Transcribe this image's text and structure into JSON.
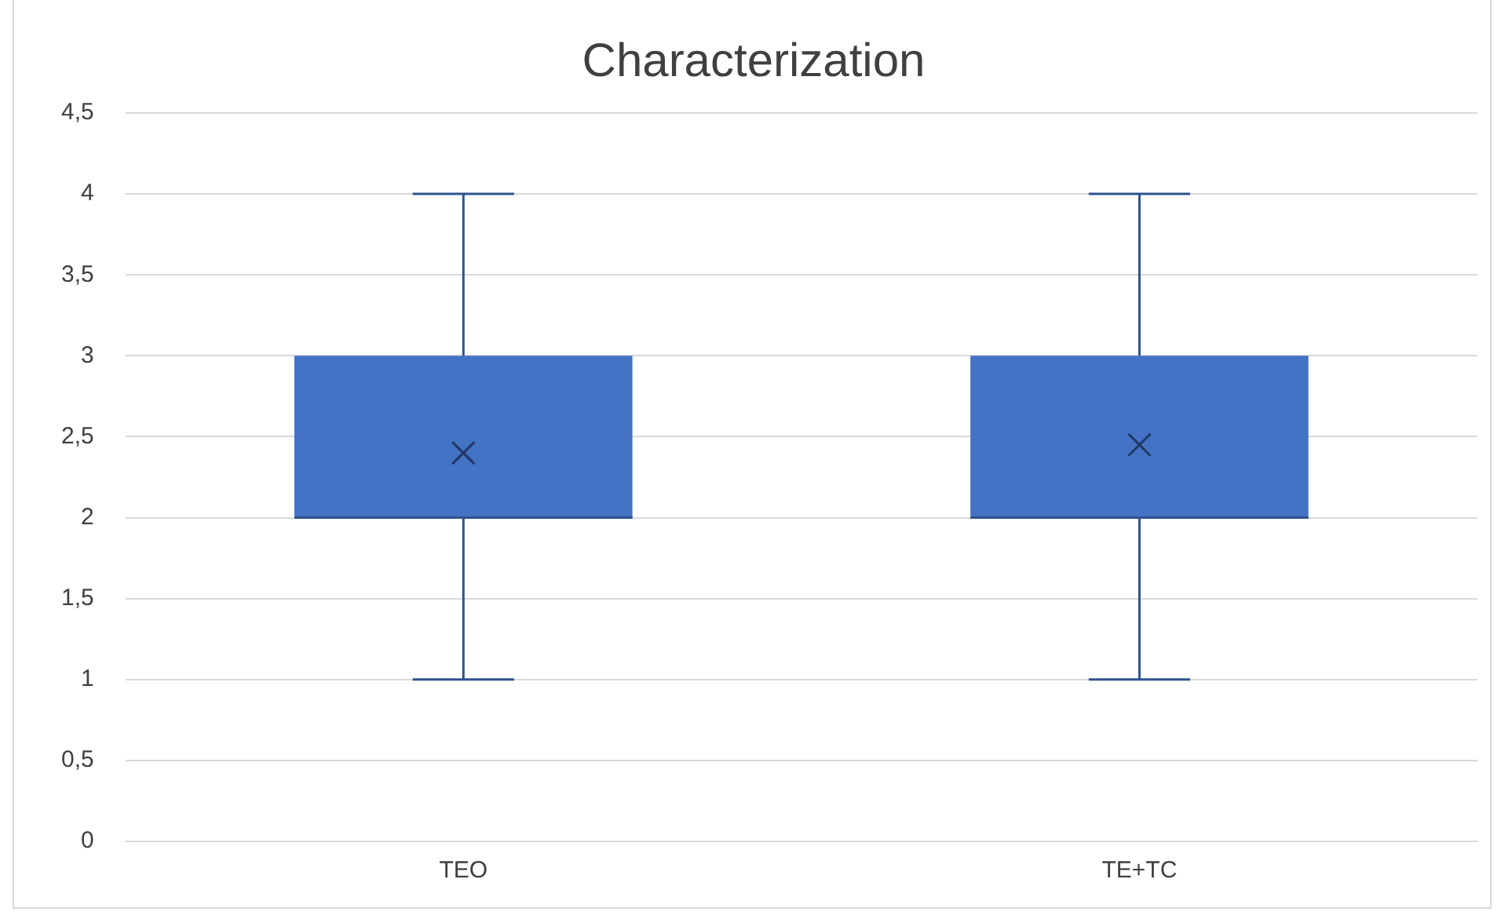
{
  "chart_data": {
    "type": "box",
    "title": "Characterization",
    "categories": [
      "TEO",
      "TE+TC"
    ],
    "color": "#4472c4",
    "boxes": [
      {
        "low": 1,
        "q1": 2,
        "median": 2,
        "q3": 3,
        "high": 4,
        "mean": 2.4
      },
      {
        "low": 1,
        "q1": 2,
        "median": 2,
        "q3": 3,
        "high": 4,
        "mean": 2.45
      }
    ],
    "ylim": [
      0,
      4.5
    ],
    "yticks": [
      {
        "value": 0,
        "label": "0"
      },
      {
        "value": 0.5,
        "label": "0,5"
      },
      {
        "value": 1,
        "label": "1"
      },
      {
        "value": 1.5,
        "label": "1,5"
      },
      {
        "value": 2,
        "label": "2"
      },
      {
        "value": 2.5,
        "label": "2,5"
      },
      {
        "value": 3,
        "label": "3"
      },
      {
        "value": 3.5,
        "label": "3,5"
      },
      {
        "value": 4,
        "label": "4"
      },
      {
        "value": 4.5,
        "label": "4,5"
      }
    ],
    "grid": "y",
    "legend": false
  }
}
